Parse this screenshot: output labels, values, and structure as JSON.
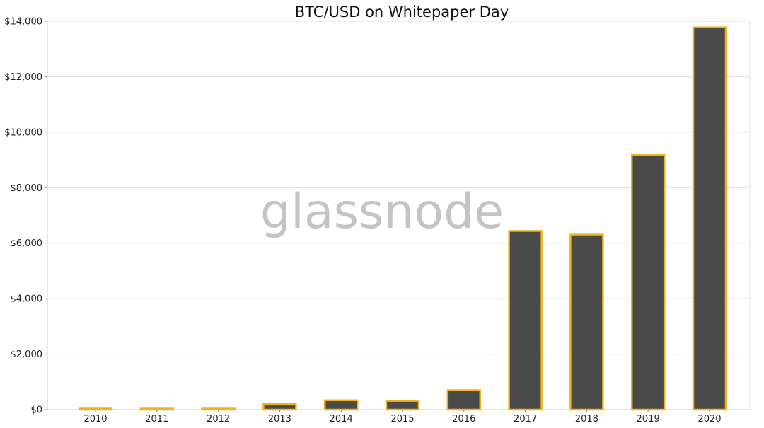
{
  "chart_data": {
    "type": "bar",
    "title": "BTC/USD on Whitepaper Day",
    "watermark": "glassnode",
    "xlabel": "",
    "ylabel": "",
    "categories": [
      "2010",
      "2011",
      "2012",
      "2013",
      "2014",
      "2015",
      "2016",
      "2017",
      "2018",
      "2019",
      "2020"
    ],
    "values": [
      0.4,
      3.2,
      10.9,
      205,
      337,
      315,
      700,
      6440,
      6310,
      9180,
      13780
    ],
    "ylim": [
      0,
      14000
    ],
    "yticks": [
      0,
      2000,
      4000,
      6000,
      8000,
      10000,
      12000,
      14000
    ],
    "ytick_labels": [
      "$0",
      "$2,000",
      "$4,000",
      "$6,000",
      "$8,000",
      "$10,000",
      "$12,000",
      "$14,000"
    ],
    "grid": true,
    "legend": "none",
    "colors": {
      "bar_fill": "#4a4a4a",
      "bar_edge": "#f0b31c",
      "grid": "#dcdcdc",
      "axis": "#cccccc"
    }
  }
}
